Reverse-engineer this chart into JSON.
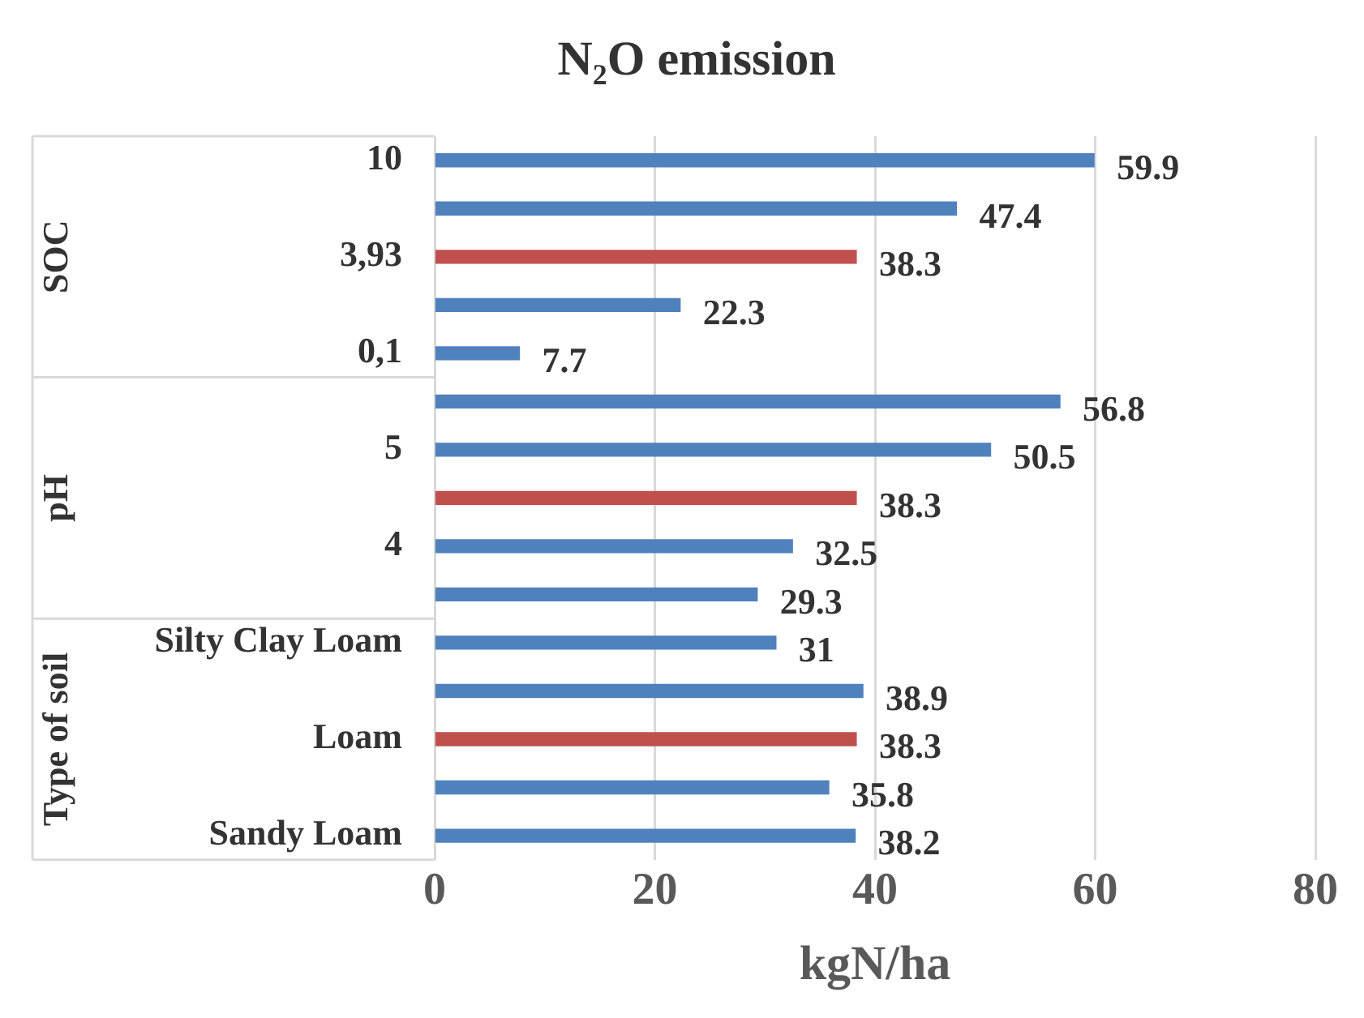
{
  "chart_data": {
    "type": "bar",
    "orientation": "horizontal",
    "title": "N₂O emission",
    "xlabel": "kgN/ha",
    "categories": [
      "10",
      null,
      "3,93",
      null,
      "0,1",
      null,
      "5",
      null,
      "4",
      null,
      "Silty Clay Loam",
      null,
      "Loam",
      null,
      "Sandy Loam"
    ],
    "values": [
      59.9,
      47.4,
      38.3,
      22.3,
      7.7,
      56.8,
      50.5,
      38.3,
      32.5,
      29.3,
      31,
      38.9,
      38.3,
      35.8,
      38.2
    ],
    "colors": [
      "#4f81bd",
      "#4f81bd",
      "#c0504d",
      "#4f81bd",
      "#4f81bd",
      "#4f81bd",
      "#4f81bd",
      "#c0504d",
      "#4f81bd",
      "#4f81bd",
      "#4f81bd",
      "#4f81bd",
      "#c0504d",
      "#4f81bd",
      "#4f81bd"
    ],
    "xlim": [
      0,
      80
    ],
    "xticks": [
      0,
      20,
      40,
      60,
      80
    ],
    "grid": "x",
    "legend": false,
    "data_labels": true,
    "annotations": [
      "SOC",
      "pH",
      "Type of soil"
    ]
  }
}
